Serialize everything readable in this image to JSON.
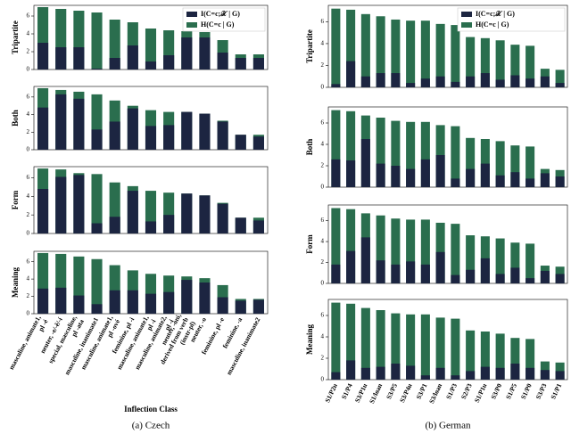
{
  "chart_data": [
    {
      "type": "bar",
      "caption": "(a) Czech",
      "xlabel": "Inflection Class",
      "categories": [
        [
          "masculine, animate1,",
          "pl -é"
        ],
        [
          "neuter, -e/-ě/-í"
        ],
        [
          "special, masculine,",
          "pl -ata"
        ],
        [
          "masculine, inanimate1"
        ],
        [
          "masculine, animate1,",
          "pl -ové"
        ],
        [
          "feminine, pl -i"
        ],
        [
          "masculine, animate1,",
          "pl -i"
        ],
        [
          "masculine, animate2,",
          "pl -i"
        ],
        [
          "neuter, -oni,",
          "derived from verb",
          "(instr-pl)"
        ],
        [
          "neuter, -o"
        ],
        [
          "feminine, pl -e"
        ],
        [
          "feminine, -a"
        ],
        [
          "masculine, inanimate2"
        ]
      ],
      "series": [
        {
          "name": "I(C=c;𝒳 | G)",
          "color": "#1c2541"
        },
        {
          "name": "H(C=c | G)",
          "color": "#2a6e4e"
        }
      ],
      "legend": "upper right",
      "ylim": [
        0,
        7.2
      ],
      "yticks": [
        0,
        2,
        4,
        6
      ],
      "panels": [
        {
          "ylabel": "Tripartite",
          "values": [
            [
              3.0,
              2.5,
              2.5,
              0.1,
              1.3,
              2.7,
              0.9,
              1.6,
              3.6,
              3.6,
              1.9,
              1.3,
              1.3
            ],
            [
              7.0,
              6.8,
              6.6,
              6.4,
              5.6,
              5.3,
              4.6,
              4.4,
              4.3,
              4.2,
              3.3,
              1.7,
              1.7
            ]
          ]
        },
        {
          "ylabel": "Both",
          "values": [
            [
              4.8,
              6.3,
              5.8,
              2.3,
              3.2,
              4.7,
              2.7,
              2.8,
              4.3,
              4.1,
              3.2,
              1.7,
              1.5
            ],
            [
              7.0,
              6.8,
              6.6,
              6.3,
              5.6,
              5.0,
              4.5,
              4.3,
              4.3,
              4.1,
              3.3,
              1.7,
              1.7
            ]
          ]
        },
        {
          "ylabel": "Form",
          "values": [
            [
              4.8,
              6.1,
              6.3,
              1.1,
              1.8,
              4.6,
              1.3,
              2.0,
              4.3,
              4.1,
              3.2,
              1.7,
              1.4
            ],
            [
              7.0,
              6.9,
              6.5,
              6.4,
              5.5,
              5.1,
              4.6,
              4.4,
              4.3,
              4.1,
              3.3,
              1.7,
              1.7
            ]
          ]
        },
        {
          "ylabel": "Meaning",
          "values": [
            [
              2.9,
              3.0,
              2.1,
              1.1,
              2.7,
              2.7,
              2.3,
              2.5,
              3.9,
              3.6,
              1.9,
              1.5,
              1.6
            ],
            [
              7.0,
              6.9,
              6.6,
              6.3,
              5.6,
              5.0,
              4.6,
              4.4,
              4.3,
              4.1,
              3.3,
              1.7,
              1.7
            ]
          ]
        }
      ]
    },
    {
      "type": "bar",
      "caption": "(b) German",
      "categories": [
        [
          "S1/P2u"
        ],
        [
          "S1/P4"
        ],
        [
          "S3/P1u"
        ],
        [
          "S1/loan"
        ],
        [
          "S3/P5"
        ],
        [
          "S3/P4u"
        ],
        [
          "S3/P1"
        ],
        [
          "S3/loan"
        ],
        [
          "S1/P3"
        ],
        [
          "S2/P3"
        ],
        [
          "S1/P1u"
        ],
        [
          "S3/P0"
        ],
        [
          "S1/P5"
        ],
        [
          "S1/P0"
        ],
        [
          "S3/P3"
        ],
        [
          "S1/P1"
        ]
      ],
      "series": [
        {
          "name": "I(C=c;𝒳 | G)",
          "color": "#1c2541"
        },
        {
          "name": "H(C=c | G)",
          "color": "#2a6e4e"
        }
      ],
      "legend": "upper right",
      "ylim": [
        0,
        7.5
      ],
      "yticks": [
        0,
        2,
        4,
        6
      ],
      "panels": [
        {
          "ylabel": "Tripartite",
          "values": [
            [
              0.3,
              2.4,
              1.0,
              1.3,
              1.3,
              0.4,
              0.8,
              1.0,
              0.5,
              1.0,
              1.3,
              0.7,
              1.1,
              0.8,
              1.0,
              0.4
            ],
            [
              7.2,
              7.1,
              6.7,
              6.5,
              6.2,
              6.1,
              6.1,
              5.8,
              5.7,
              4.6,
              4.5,
              4.3,
              3.9,
              3.8,
              1.7,
              1.6
            ]
          ]
        },
        {
          "ylabel": "Both",
          "values": [
            [
              2.6,
              2.5,
              4.5,
              2.2,
              2.0,
              1.7,
              2.6,
              3.0,
              0.8,
              1.7,
              2.2,
              1.1,
              1.4,
              0.8,
              1.3,
              1.0
            ],
            [
              7.2,
              7.1,
              6.7,
              6.5,
              6.2,
              6.1,
              6.1,
              5.8,
              5.7,
              4.6,
              4.5,
              4.3,
              3.9,
              3.8,
              1.7,
              1.6
            ]
          ]
        },
        {
          "ylabel": "Form",
          "values": [
            [
              1.8,
              3.1,
              4.4,
              2.2,
              1.8,
              2.1,
              1.8,
              3.0,
              0.8,
              1.3,
              2.4,
              0.9,
              1.5,
              0.5,
              1.2,
              0.9
            ],
            [
              7.2,
              7.1,
              6.7,
              6.5,
              6.2,
              6.1,
              6.1,
              5.8,
              5.7,
              4.6,
              4.5,
              4.3,
              3.9,
              3.8,
              1.7,
              1.6
            ]
          ]
        },
        {
          "ylabel": "Meaning",
          "values": [
            [
              0.7,
              1.8,
              1.1,
              1.2,
              1.5,
              1.3,
              0.4,
              1.1,
              0.4,
              0.8,
              1.2,
              1.1,
              1.5,
              1.1,
              0.9,
              0.8
            ],
            [
              7.2,
              7.1,
              6.7,
              6.5,
              6.2,
              6.1,
              6.1,
              5.8,
              5.7,
              4.6,
              4.5,
              4.3,
              3.9,
              3.8,
              1.7,
              1.6
            ]
          ]
        }
      ]
    }
  ]
}
